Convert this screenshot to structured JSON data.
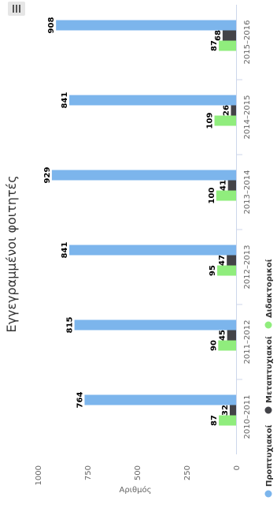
{
  "chart_data": {
    "type": "bar",
    "orientation": "horizontal",
    "title": "Εγγεγραμμένοι φοιτητές",
    "ylabel": "Αριθμός",
    "ylim": [
      0,
      1000
    ],
    "y_ticks": [
      0,
      250,
      500,
      750,
      1000
    ],
    "categories": [
      "2010–2011",
      "2011–2012",
      "2012–2013",
      "2013–2014",
      "2014–2015",
      "2015–2016"
    ],
    "series": [
      {
        "name": "Προπτυχιακοί",
        "color": "#7cb5ec",
        "values": [
          764,
          815,
          841,
          929,
          841,
          908
        ]
      },
      {
        "name": "Μεταπτυχιακοί",
        "color": "#434348",
        "values": [
          32,
          45,
          47,
          41,
          26,
          68
        ]
      },
      {
        "name": "Διδακτορικοί",
        "color": "#90ed7d",
        "values": [
          87,
          90,
          95,
          100,
          109,
          87
        ]
      }
    ],
    "legend_position": "bottom",
    "grid": false,
    "data_labels": true
  },
  "ui": {
    "menu_icon": "hamburger-menu-icon"
  }
}
